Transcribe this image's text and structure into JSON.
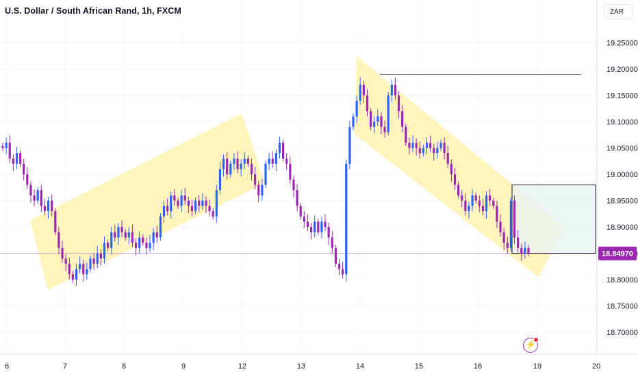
{
  "header": {
    "title": "U.S. Dollar / South African Rand, 1h, FXCM",
    "currency_button": "ZAR"
  },
  "price_tag": {
    "value": "18.84970",
    "color": "#9c27b0"
  },
  "colors": {
    "up": "#2962ff",
    "down": "#9c27b0",
    "channel_fill": "#fff3b0",
    "target_box_fill": "#e8f2f2"
  },
  "icons": {
    "alert": "lightning-bolt-icon"
  },
  "chart_data": {
    "type": "candlestick",
    "title": "U.S. Dollar / South African Rand, 1h, FXCM",
    "xlabel": "",
    "ylabel": "",
    "x_ticks": [
      "6",
      "7",
      "8",
      "9",
      "12",
      "13",
      "14",
      "15",
      "16",
      "19",
      "20"
    ],
    "y_ticks": [
      "19.25000",
      "19.20000",
      "19.15000",
      "19.10000",
      "19.05000",
      "19.00000",
      "18.95000",
      "18.90000",
      "18.85000",
      "18.80000",
      "18.75000",
      "18.70000"
    ],
    "ylim": [
      18.68,
      19.28
    ],
    "last_price": 18.8497,
    "grid": true,
    "candle_closes": [
      19.05,
      19.06,
      19.03,
      19.02,
      19.04,
      19.02,
      19.0,
      18.98,
      18.96,
      18.95,
      18.97,
      18.94,
      18.93,
      18.95,
      18.93,
      18.89,
      18.86,
      18.84,
      18.83,
      18.81,
      18.8,
      18.82,
      18.83,
      18.81,
      18.82,
      18.84,
      18.83,
      18.85,
      18.84,
      18.87,
      18.86,
      18.89,
      18.88,
      18.9,
      18.89,
      18.88,
      18.89,
      18.87,
      18.86,
      18.88,
      18.87,
      18.86,
      18.87,
      18.89,
      18.88,
      18.92,
      18.94,
      18.93,
      18.96,
      18.95,
      18.94,
      18.96,
      18.95,
      18.94,
      18.93,
      18.95,
      18.94,
      18.95,
      18.94,
      18.93,
      18.92,
      18.97,
      19.01,
      19.03,
      19.0,
      19.02,
      19.03,
      19.01,
      19.02,
      19.03,
      19.02,
      19.0,
      18.98,
      18.96,
      18.98,
      19.02,
      19.03,
      19.02,
      19.04,
      19.06,
      19.03,
      19.02,
      18.99,
      18.97,
      18.94,
      18.92,
      18.91,
      18.9,
      18.89,
      18.91,
      18.89,
      18.91,
      18.9,
      18.88,
      18.86,
      18.83,
      18.82,
      18.81,
      19.02,
      19.09,
      19.11,
      19.14,
      19.17,
      19.15,
      19.12,
      19.09,
      19.1,
      19.11,
      19.09,
      19.08,
      19.15,
      19.17,
      19.15,
      19.12,
      19.09,
      19.06,
      19.05,
      19.06,
      19.05,
      19.04,
      19.05,
      19.06,
      19.05,
      19.04,
      19.05,
      19.06,
      19.04,
      19.02,
      19.0,
      18.98,
      18.96,
      18.95,
      18.93,
      18.94,
      18.96,
      18.95,
      18.94,
      18.93,
      18.96,
      18.95,
      18.94,
      18.91,
      18.89,
      18.87,
      18.86,
      18.95,
      18.88,
      18.86,
      18.85,
      18.86,
      18.85
    ],
    "drawings": {
      "resistance_line": 19.19,
      "target_box": {
        "top": 18.98,
        "bottom": 18.85
      },
      "channel_1": "ascending",
      "channel_2": "descending"
    }
  }
}
